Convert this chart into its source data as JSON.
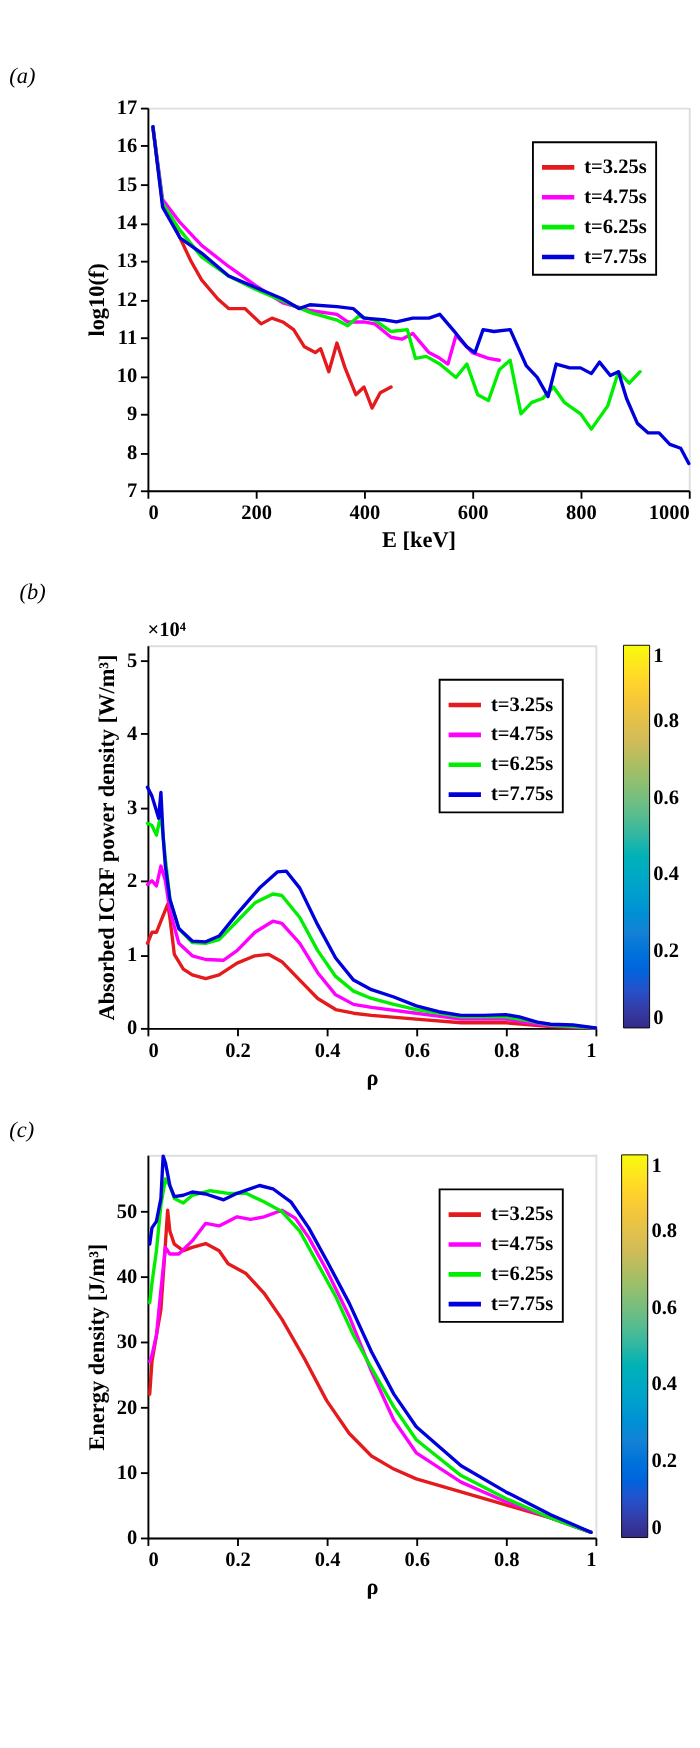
{
  "chart_data": [
    {
      "type": "line",
      "title": "(a)",
      "xlabel": "E [keV]",
      "ylabel": "log10(f)",
      "xlim": [
        0,
        1000
      ],
      "xticks": [
        0,
        200,
        400,
        600,
        800,
        1000
      ],
      "ylim": [
        7,
        17
      ],
      "yticks": [
        7,
        8,
        9,
        10,
        11,
        12,
        13,
        14,
        15,
        16,
        17
      ],
      "legend": "top right",
      "grid": false,
      "series": [
        {
          "name": "t=3.25s",
          "color": "#e41a1c",
          "x": [
            10,
            28,
            50,
            80,
            100,
            130,
            150,
            180,
            210,
            230,
            250,
            270,
            290,
            310,
            320,
            335,
            350,
            365,
            385,
            400,
            415,
            430,
            450
          ],
          "values": [
            16.5,
            14.5,
            13.9,
            13.0,
            12.5,
            12.0,
            11.75,
            11.75,
            11.35,
            11.5,
            11.4,
            11.2,
            10.75,
            10.6,
            10.7,
            10.1,
            10.85,
            10.2,
            9.5,
            9.7,
            9.15,
            9.55,
            9.7
          ]
        },
        {
          "name": "t=4.75s",
          "color": "#ff00ff",
          "x": [
            10,
            28,
            60,
            100,
            150,
            200,
            250,
            300,
            350,
            370,
            400,
            420,
            450,
            470,
            490,
            520,
            540,
            555,
            570,
            600,
            630,
            650
          ],
          "values": [
            16.5,
            14.6,
            14.0,
            13.4,
            12.85,
            12.35,
            11.9,
            11.7,
            11.6,
            11.4,
            11.4,
            11.35,
            11.0,
            10.95,
            11.1,
            10.6,
            10.45,
            10.3,
            11.05,
            10.6,
            10.45,
            10.4
          ]
        },
        {
          "name": "t=6.25s",
          "color": "#00ee00",
          "x": [
            10,
            28,
            60,
            100,
            150,
            200,
            250,
            300,
            350,
            370,
            390,
            420,
            450,
            480,
            495,
            515,
            540,
            570,
            590,
            610,
            630,
            650,
            670,
            690,
            710,
            730,
            750,
            770,
            800,
            820,
            850,
            870,
            890,
            910
          ],
          "values": [
            16.5,
            14.5,
            13.8,
            13.1,
            12.6,
            12.25,
            11.95,
            11.65,
            11.45,
            11.3,
            11.55,
            11.45,
            11.15,
            11.2,
            10.45,
            10.5,
            10.3,
            9.95,
            10.3,
            9.5,
            9.35,
            10.15,
            10.4,
            9.0,
            9.3,
            9.4,
            9.7,
            9.3,
            9.0,
            8.6,
            9.2,
            10.1,
            9.8,
            10.1
          ]
        },
        {
          "name": "t=7.75s",
          "color": "#0000dd",
          "x": [
            10,
            28,
            60,
            100,
            150,
            200,
            250,
            280,
            300,
            350,
            380,
            400,
            440,
            460,
            490,
            520,
            540,
            570,
            590,
            605,
            620,
            640,
            670,
            700,
            720,
            740,
            755,
            780,
            800,
            820,
            835,
            855,
            870,
            885,
            905,
            925,
            945,
            965,
            985,
            1000
          ],
          "values": [
            16.5,
            14.4,
            13.6,
            13.2,
            12.6,
            12.3,
            12.0,
            11.75,
            11.85,
            11.8,
            11.75,
            11.5,
            11.45,
            11.4,
            11.5,
            11.5,
            11.6,
            11.1,
            10.75,
            10.6,
            11.2,
            11.15,
            11.2,
            10.25,
            9.95,
            9.45,
            10.3,
            10.2,
            10.2,
            10.05,
            10.35,
            10.0,
            10.1,
            9.4,
            8.75,
            8.5,
            8.5,
            8.2,
            8.1,
            7.7
          ]
        }
      ]
    },
    {
      "type": "line",
      "title": "(b)",
      "xlabel": "ρ",
      "ylabel": "Absorbed ICRF power density [W/m³]",
      "annotations": [
        "×10⁴"
      ],
      "xlim": [
        0,
        1
      ],
      "xticks": [
        0,
        0.2,
        0.4,
        0.6,
        0.8,
        1
      ],
      "ylim": [
        0,
        5.2
      ],
      "yticks": [
        0,
        1,
        2,
        3,
        4,
        5
      ],
      "legend": "top right",
      "grid": false,
      "clim": [
        0,
        1
      ],
      "cticks": [
        0,
        0.2,
        0.4,
        0.6,
        0.8,
        1
      ],
      "series": [
        {
          "name": "t=3.25s",
          "color": "#e41a1c",
          "x": [
            0,
            0.01,
            0.02,
            0.03,
            0.045,
            0.05,
            0.06,
            0.08,
            0.1,
            0.13,
            0.16,
            0.2,
            0.24,
            0.27,
            0.3,
            0.34,
            0.38,
            0.42,
            0.46,
            0.5,
            0.6,
            0.7,
            0.8,
            0.84,
            0.9,
            1
          ],
          "values": [
            1.15,
            1.3,
            1.3,
            1.45,
            1.68,
            1.5,
            1.0,
            0.8,
            0.72,
            0.67,
            0.72,
            0.88,
            0.98,
            1.0,
            0.9,
            0.65,
            0.4,
            0.25,
            0.2,
            0.17,
            0.12,
            0.07,
            0.07,
            0.05,
            0.02,
            0.0
          ]
        },
        {
          "name": "t=4.75s",
          "color": "#ff00ff",
          "x": [
            0,
            0.01,
            0.02,
            0.03,
            0.04,
            0.05,
            0.07,
            0.1,
            0.13,
            0.17,
            0.2,
            0.24,
            0.28,
            0.3,
            0.34,
            0.38,
            0.42,
            0.46,
            0.5,
            0.6,
            0.7,
            0.8,
            0.85,
            0.9,
            1
          ],
          "values": [
            1.95,
            2.0,
            1.93,
            2.2,
            2.0,
            1.6,
            1.15,
            0.98,
            0.93,
            0.92,
            1.05,
            1.3,
            1.45,
            1.42,
            1.15,
            0.75,
            0.45,
            0.32,
            0.28,
            0.2,
            0.12,
            0.12,
            0.07,
            0.03,
            0.0
          ]
        },
        {
          "name": "t=6.25s",
          "color": "#00ee00",
          "x": [
            0,
            0.01,
            0.02,
            0.03,
            0.04,
            0.05,
            0.07,
            0.1,
            0.13,
            0.16,
            0.2,
            0.24,
            0.28,
            0.3,
            0.34,
            0.38,
            0.42,
            0.46,
            0.5,
            0.55,
            0.6,
            0.7,
            0.8,
            0.85,
            0.9,
            1
          ],
          "values": [
            2.78,
            2.75,
            2.62,
            2.9,
            2.3,
            1.75,
            1.35,
            1.16,
            1.15,
            1.2,
            1.45,
            1.7,
            1.82,
            1.8,
            1.5,
            1.05,
            0.7,
            0.5,
            0.4,
            0.32,
            0.25,
            0.15,
            0.15,
            0.1,
            0.04,
            0.0
          ]
        },
        {
          "name": "t=7.75s",
          "color": "#0000dd",
          "x": [
            0,
            0.01,
            0.02,
            0.025,
            0.03,
            0.035,
            0.04,
            0.05,
            0.07,
            0.1,
            0.13,
            0.16,
            0.2,
            0.25,
            0.29,
            0.31,
            0.34,
            0.38,
            0.42,
            0.46,
            0.5,
            0.55,
            0.6,
            0.65,
            0.7,
            0.75,
            0.8,
            0.83,
            0.87,
            0.9,
            0.95,
            1
          ],
          "values": [
            3.27,
            3.15,
            2.95,
            2.85,
            3.2,
            2.6,
            2.2,
            1.75,
            1.35,
            1.18,
            1.17,
            1.25,
            1.55,
            1.9,
            2.12,
            2.13,
            1.9,
            1.4,
            0.95,
            0.65,
            0.52,
            0.42,
            0.3,
            0.22,
            0.17,
            0.17,
            0.18,
            0.15,
            0.08,
            0.05,
            0.04,
            0.0
          ]
        }
      ]
    },
    {
      "type": "line",
      "title": "(c)",
      "xlabel": "ρ",
      "ylabel": "Energy density [J/m³]",
      "xlim": [
        0,
        1
      ],
      "xticks": [
        0,
        0.2,
        0.4,
        0.6,
        0.8,
        1
      ],
      "ylim": [
        0,
        58.7
      ],
      "yticks": [
        0,
        10,
        20,
        30,
        40,
        50
      ],
      "legend": "top right",
      "grid": false,
      "clim": [
        0,
        1
      ],
      "cticks": [
        0,
        0.2,
        0.4,
        0.6,
        0.8,
        1
      ],
      "series": [
        {
          "name": "t=3.25s",
          "color": "#e41a1c",
          "x": [
            0.005,
            0.01,
            0.02,
            0.03,
            0.04,
            0.045,
            0.05,
            0.06,
            0.08,
            0.1,
            0.13,
            0.16,
            0.18,
            0.22,
            0.26,
            0.3,
            0.35,
            0.4,
            0.45,
            0.5,
            0.55,
            0.6,
            0.7,
            0.8,
            0.9,
            0.99
          ],
          "values": [
            22,
            27,
            31,
            35,
            45,
            50.2,
            47,
            45,
            44,
            44.5,
            45.1,
            44,
            42,
            40.5,
            37.5,
            33.5,
            27.5,
            21,
            16,
            12.5,
            10.5,
            9.0,
            7,
            5,
            3,
            0.8
          ]
        },
        {
          "name": "t=4.75s",
          "color": "#ff00ff",
          "x": [
            0.005,
            0.01,
            0.02,
            0.03,
            0.04,
            0.05,
            0.07,
            0.1,
            0.13,
            0.16,
            0.2,
            0.23,
            0.26,
            0.3,
            0.33,
            0.36,
            0.4,
            0.45,
            0.5,
            0.55,
            0.6,
            0.7,
            0.8,
            0.9,
            0.99
          ],
          "values": [
            27,
            28,
            31,
            38,
            44.5,
            43.5,
            43.5,
            45.5,
            48.2,
            47.8,
            49.2,
            48.8,
            49.2,
            50.2,
            49,
            46,
            41,
            34,
            25.5,
            18,
            13,
            8.5,
            5.5,
            3,
            0.8
          ]
        },
        {
          "name": "t=6.25s",
          "color": "#00ee00",
          "x": [
            0.005,
            0.01,
            0.02,
            0.03,
            0.04,
            0.05,
            0.06,
            0.08,
            0.1,
            0.14,
            0.18,
            0.22,
            0.26,
            0.3,
            0.34,
            0.38,
            0.42,
            0.46,
            0.5,
            0.55,
            0.6,
            0.7,
            0.8,
            0.9,
            0.99
          ],
          "values": [
            36,
            39,
            44,
            51,
            55,
            54,
            52,
            51.3,
            52.5,
            53.2,
            52.8,
            52.8,
            51.5,
            50,
            47,
            42,
            37,
            31,
            26,
            20,
            15,
            9.5,
            6,
            3,
            0.8
          ]
        },
        {
          "name": "t=7.75s",
          "color": "#0000dd",
          "x": [
            0.005,
            0.01,
            0.02,
            0.03,
            0.035,
            0.04,
            0.05,
            0.06,
            0.08,
            0.1,
            0.13,
            0.17,
            0.2,
            0.25,
            0.28,
            0.32,
            0.36,
            0.4,
            0.45,
            0.5,
            0.55,
            0.6,
            0.7,
            0.8,
            0.9,
            0.99
          ],
          "values": [
            45,
            47.5,
            48.5,
            52,
            58.5,
            57.5,
            54,
            52.3,
            52.5,
            53,
            52.7,
            51.8,
            52.8,
            54,
            53.5,
            51.5,
            47.5,
            42.5,
            36,
            28.5,
            22,
            17,
            11,
            7,
            3.5,
            0.8
          ]
        }
      ]
    }
  ]
}
